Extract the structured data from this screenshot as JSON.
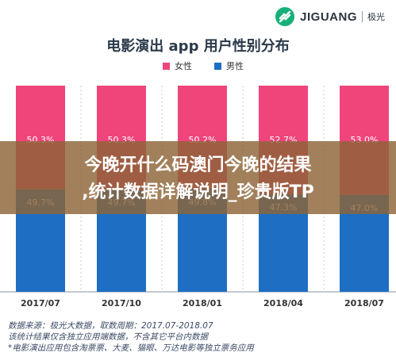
{
  "brand": {
    "name": "JIGUANG",
    "sub": "极光"
  },
  "chart_data": {
    "type": "bar",
    "stacked": true,
    "percent": true,
    "title": "电影演出 app 用户性别分布",
    "categories": [
      "2017/07",
      "2017/10",
      "2018/01",
      "2018/04",
      "2018/07"
    ],
    "series": [
      {
        "name": "女性",
        "color": "#f0457a",
        "values": [
          50.3,
          50.3,
          50.2,
          52.7,
          53.0
        ],
        "labels": [
          "50.3%",
          "50.3%",
          "50.2%",
          "52.7%",
          "53.0%"
        ]
      },
      {
        "name": "男性",
        "color": "#1e6fc3",
        "values": [
          49.7,
          49.7,
          49.8,
          47.3,
          47.0
        ],
        "labels": [
          "49.7%",
          "49.7%",
          "49.8%",
          "47.3%",
          "47.0%"
        ]
      }
    ],
    "ylim": [
      0,
      100
    ],
    "legend_position": "top-center",
    "grid": false
  },
  "overlay": {
    "line1": "今晚开什么码澳门今晚的结果",
    "line2": ",统计数据详解说明_珍贵版TP"
  },
  "notes": [
    "数据来源：极光大数据，取数周期：2017.07-2018.07",
    "该统计结果仅含独立应用端数据，不含其它平台内数据",
    "*电影演出应用包含淘票票、大麦、猫眼、万达电影等独立票务应用"
  ]
}
